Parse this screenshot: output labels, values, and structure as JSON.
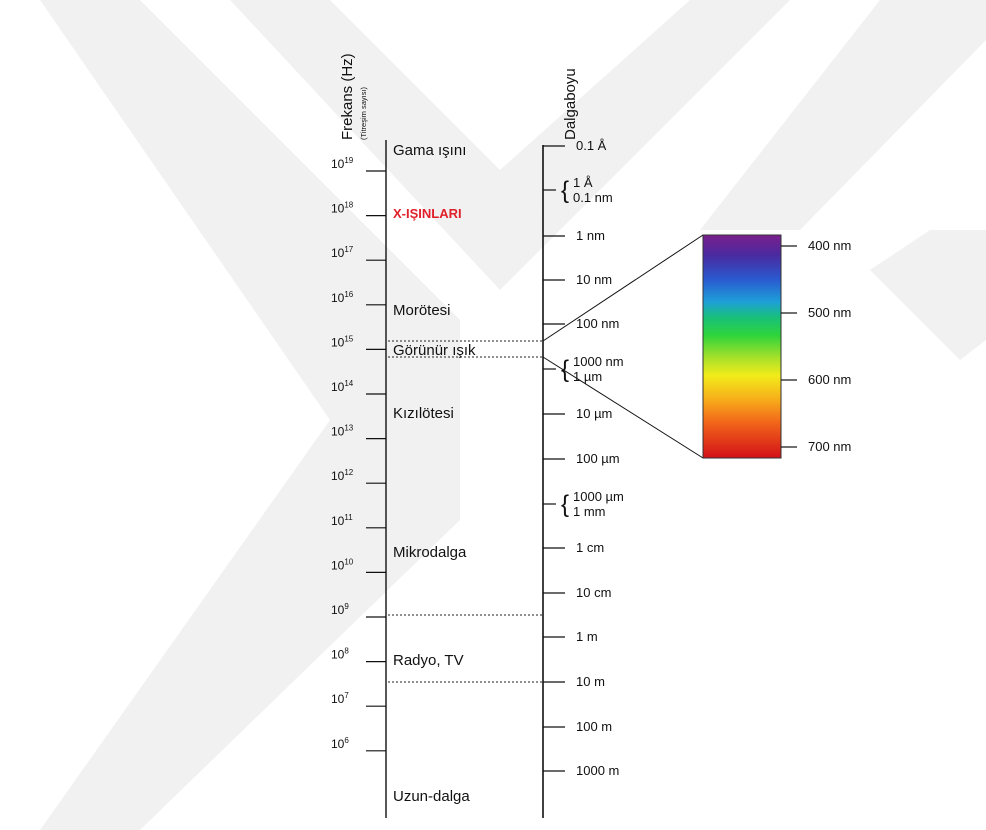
{
  "frequency_axis": {
    "title": "Frekans (Hz)",
    "subtitle": "(Titreşim sayısı)",
    "ticks": [
      {
        "base": "10",
        "exp": "19"
      },
      {
        "base": "10",
        "exp": "18"
      },
      {
        "base": "10",
        "exp": "17"
      },
      {
        "base": "10",
        "exp": "16"
      },
      {
        "base": "10",
        "exp": "15"
      },
      {
        "base": "10",
        "exp": "14"
      },
      {
        "base": "10",
        "exp": "13"
      },
      {
        "base": "10",
        "exp": "12"
      },
      {
        "base": "10",
        "exp": "11"
      },
      {
        "base": "10",
        "exp": "10"
      },
      {
        "base": "10",
        "exp": "9"
      },
      {
        "base": "10",
        "exp": "8"
      },
      {
        "base": "10",
        "exp": "7"
      },
      {
        "base": "10",
        "exp": "6"
      }
    ]
  },
  "regions": [
    {
      "label": "Gama ışını",
      "highlight": false
    },
    {
      "label": "X-IŞINLARI",
      "highlight": true
    },
    {
      "label": "Morötesi",
      "highlight": false
    },
    {
      "label": "Görünür ışık",
      "highlight": false
    },
    {
      "label": "Kızılötesi",
      "highlight": false
    },
    {
      "label": "Mikrodalga",
      "highlight": false
    },
    {
      "label": "Radyo, TV",
      "highlight": false
    },
    {
      "label": "Uzun-dalga",
      "highlight": false
    }
  ],
  "wavelength_axis": {
    "title": "Dalgaboyu",
    "ticks": [
      {
        "label": "0.1 Å"
      },
      {
        "label": "1 nm"
      },
      {
        "label": "10 nm"
      },
      {
        "label": "100 nm"
      },
      {
        "label": "10 µm"
      },
      {
        "label": "100 µm"
      },
      {
        "label": "1 cm"
      },
      {
        "label": "10 cm"
      },
      {
        "label": "1 m"
      },
      {
        "label": "10 m"
      },
      {
        "label": "100 m"
      },
      {
        "label": "1000 m"
      }
    ],
    "brace_pairs": [
      {
        "top": "1 Å",
        "bottom": "0.1 nm"
      },
      {
        "top": "1000 nm",
        "bottom": "1 µm"
      },
      {
        "top": "1000 µm",
        "bottom": "1 mm"
      }
    ]
  },
  "visible_spectrum": {
    "labels": [
      "400 nm",
      "500 nm",
      "600 nm",
      "700 nm"
    ]
  },
  "colors": {
    "highlight": "#e0202a",
    "text": "#111111",
    "axis": "#111111",
    "watermark": "#f1f1f1"
  }
}
